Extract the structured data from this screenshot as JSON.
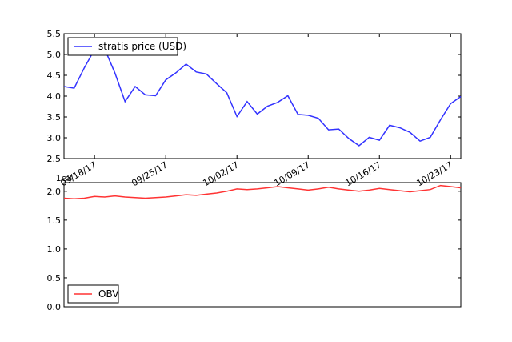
{
  "chart_data": [
    {
      "type": "line",
      "x": [
        "09/15/17",
        "09/16/17",
        "09/17/17",
        "09/18/17",
        "09/19/17",
        "09/20/17",
        "09/21/17",
        "09/22/17",
        "09/23/17",
        "09/24/17",
        "09/25/17",
        "09/26/17",
        "09/27/17",
        "09/28/17",
        "09/29/17",
        "09/30/17",
        "10/01/17",
        "10/02/17",
        "10/03/17",
        "10/04/17",
        "10/05/17",
        "10/06/17",
        "10/07/17",
        "10/08/17",
        "10/09/17",
        "10/10/17",
        "10/11/17",
        "10/12/17",
        "10/13/17",
        "10/14/17",
        "10/15/17",
        "10/16/17",
        "10/17/17",
        "10/18/17",
        "10/19/17",
        "10/20/17",
        "10/21/17",
        "10/22/17",
        "10/23/17",
        "10/24/17"
      ],
      "series": [
        {
          "name": "stratis price (USD)",
          "color": "#3333ff",
          "values": [
            4.23,
            4.19,
            4.68,
            5.12,
            5.13,
            4.56,
            3.87,
            4.23,
            4.03,
            4.01,
            4.39,
            4.56,
            4.77,
            4.58,
            4.53,
            4.3,
            4.08,
            3.51,
            3.87,
            3.57,
            3.76,
            3.85,
            4.01,
            3.56,
            3.54,
            3.47,
            3.19,
            3.21,
            2.98,
            2.81,
            3.01,
            2.94,
            3.3,
            3.24,
            3.13,
            2.92,
            3.01,
            3.43,
            3.82,
            3.99
          ]
        }
      ],
      "xtick_labels": [
        "09/18/17",
        "09/25/17",
        "10/02/17",
        "10/09/17",
        "10/16/17",
        "10/23/17"
      ],
      "ytick_labels": [
        "2.5",
        "3.0",
        "3.5",
        "4.0",
        "4.5",
        "5.0",
        "5.5"
      ],
      "ylim": [
        2.5,
        5.5
      ],
      "legend": "top-left",
      "grid": false
    },
    {
      "type": "line",
      "x": [
        "09/15/17",
        "09/16/17",
        "09/17/17",
        "09/18/17",
        "09/19/17",
        "09/20/17",
        "09/21/17",
        "09/22/17",
        "09/23/17",
        "09/24/17",
        "09/25/17",
        "09/26/17",
        "09/27/17",
        "09/28/17",
        "09/29/17",
        "09/30/17",
        "10/01/17",
        "10/02/17",
        "10/03/17",
        "10/04/17",
        "10/05/17",
        "10/06/17",
        "10/07/17",
        "10/08/17",
        "10/09/17",
        "10/10/17",
        "10/11/17",
        "10/12/17",
        "10/13/17",
        "10/14/17",
        "10/15/17",
        "10/16/17",
        "10/17/17",
        "10/18/17",
        "10/19/17",
        "10/20/17",
        "10/21/17",
        "10/22/17",
        "10/23/17",
        "10/24/17"
      ],
      "series": [
        {
          "name": "OBV",
          "color": "#ff3333",
          "values": [
            1.88,
            1.87,
            1.88,
            1.91,
            1.9,
            1.92,
            1.9,
            1.89,
            1.88,
            1.89,
            1.9,
            1.92,
            1.94,
            1.93,
            1.95,
            1.97,
            2.0,
            2.04,
            2.03,
            2.04,
            2.06,
            2.08,
            2.06,
            2.04,
            2.02,
            2.04,
            2.07,
            2.04,
            2.02,
            2.0,
            2.02,
            2.05,
            2.03,
            2.01,
            1.99,
            2.01,
            2.03,
            2.1,
            2.08,
            2.06
          ]
        }
      ],
      "offset_label": "1e8",
      "ytick_labels": [
        "0.0",
        "0.5",
        "1.0",
        "1.5",
        "2.0"
      ],
      "ylim": [
        0,
        2.15
      ],
      "legend": "bottom-left",
      "grid": false
    }
  ]
}
